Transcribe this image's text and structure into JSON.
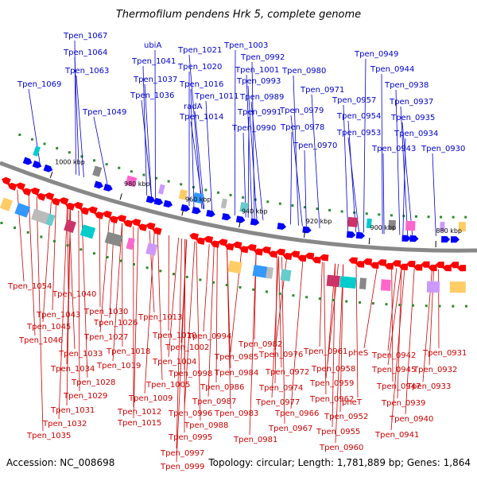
{
  "title": "Thermofilum pendens Hrk 5, complete genome",
  "footer": {
    "accession": "Accession: NC_008698",
    "summary": "Topology: circular; Length: 1,781,889 bp; Genes: 1,864"
  },
  "scale_labels": [
    "1000 kbp",
    "980 kbp",
    "960 kbp",
    "940 kbp",
    "920 kbp",
    "900 kbp",
    "880 kbp"
  ],
  "colors": {
    "forward_gene": "#0000ff",
    "reverse_gene": "#ff0000",
    "backbone": "#888888",
    "label_top": "#0000cc",
    "label_bottom": "#cc0000"
  },
  "top_labels": [
    "Tpen_1067",
    "Tpen_1064",
    "Tpen_1063",
    "Tpen_1069",
    "Tpen_1049",
    "ubiA",
    "Tpen_1041",
    "Tpen_1037",
    "Tpen_1036",
    "Tpen_1021",
    "Tpen_1020",
    "Tpen_1016",
    "Tpen_1011",
    "radA",
    "Tpen_1014",
    "Tpen_1003",
    "Tpen_0992",
    "Tpen_1001",
    "Tpen_0993",
    "Tpen_0989",
    "Tpen_0991",
    "Tpen_0990",
    "Tpen_0980",
    "Tpen_0971",
    "Tpen_0979",
    "Tpen_0978",
    "Tpen_0970",
    "Tpen_0957",
    "Tpen_0954",
    "Tpen_0953",
    "Tpen_0949",
    "Tpen_0944",
    "Tpen_0938",
    "Tpen_0937",
    "Tpen_0935",
    "Tpen_0934",
    "Tpen_0943",
    "Tpen_0930"
  ],
  "bottom_labels": [
    "Tpen_1054",
    "Tpen_1040",
    "Tpen_1043",
    "Tpen_1045",
    "Tpen_1046",
    "Tpen_1030",
    "Tpen_1026",
    "Tpen_1027",
    "Tpen_1033",
    "Tpen_1018",
    "Tpen_1034",
    "Tpen_1019",
    "Tpen_1028",
    "Tpen_1029",
    "Tpen_1031",
    "Tpen_1032",
    "Tpen_1035",
    "Tpen_1012",
    "Tpen_1015",
    "Tpen_1009",
    "Tpen_1013",
    "Tpen_1010",
    "Tpen_1002",
    "Tpen_1004",
    "Tpen_1005",
    "Tpen_0998",
    "Tpen_0994",
    "Tpen_0985",
    "Tpen_0984",
    "Tpen_0986",
    "Tpen_0987",
    "Tpen_0996",
    "Tpen_0988",
    "Tpen_0995",
    "Tpen_0997",
    "Tpen_0999",
    "Tpen_0983",
    "Tpen_0982",
    "Tpen_0981",
    "Tpen_0976",
    "Tpen_0972",
    "Tpen_0974",
    "Tpen_0977",
    "Tpen_0966",
    "Tpen_0967",
    "Tpen_0961",
    "Tpen_0958",
    "Tpen_0959",
    "Tpen_0962",
    "Tpen_0955",
    "Tpen_0960",
    "pheS",
    "pheT",
    "Tpen_0952",
    "Tpen_0942",
    "Tpen_0945",
    "Tpen_0947",
    "Tpen_0939",
    "Tpen_0940",
    "Tpen_0941",
    "Tpen_0931",
    "Tpen_0932",
    "Tpen_0933"
  ]
}
